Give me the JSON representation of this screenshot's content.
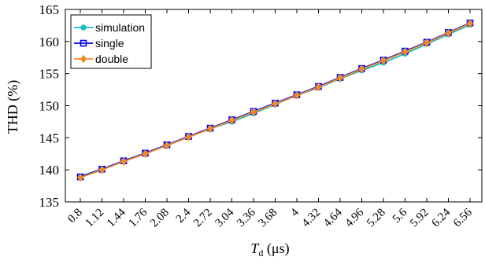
{
  "chart_data": {
    "type": "line",
    "xlabel_main": "T",
    "xlabel_sub": "d",
    "xlabel_unit": " (μs)",
    "ylabel": "THD (%)",
    "ylim": [
      135,
      165
    ],
    "yticks": [
      135,
      140,
      145,
      150,
      155,
      160,
      165
    ],
    "categories": [
      "0.8",
      "1.12",
      "1.44",
      "1.76",
      "2.08",
      "2.4",
      "2.72",
      "3.04",
      "3.36",
      "3.68",
      "4",
      "4.32",
      "4.64",
      "4.96",
      "5.28",
      "5.6",
      "5.92",
      "6.24",
      "6.56"
    ],
    "grid": false,
    "legend_position": "top-left",
    "series": [
      {
        "name": "simulation",
        "color": "#1fbfbf",
        "marker": "circle",
        "values": [
          139.0,
          140.1,
          141.3,
          142.6,
          143.9,
          145.1,
          146.4,
          147.5,
          148.8,
          150.2,
          151.6,
          152.8,
          154.2,
          155.5,
          156.7,
          158.1,
          159.6,
          161.1,
          162.6
        ]
      },
      {
        "name": "single",
        "color": "#0000ee",
        "marker": "square",
        "values": [
          138.9,
          140.1,
          141.4,
          142.6,
          143.9,
          145.2,
          146.5,
          147.8,
          149.1,
          150.4,
          151.7,
          153.0,
          154.4,
          155.8,
          157.1,
          158.5,
          159.9,
          161.4,
          162.9
        ]
      },
      {
        "name": "double",
        "color": "#f08a24",
        "marker": "diamond",
        "values": [
          138.8,
          140.0,
          141.3,
          142.5,
          143.8,
          145.1,
          146.4,
          147.7,
          149.0,
          150.3,
          151.6,
          152.9,
          154.3,
          155.7,
          157.0,
          158.4,
          159.8,
          161.3,
          162.8
        ]
      }
    ]
  }
}
